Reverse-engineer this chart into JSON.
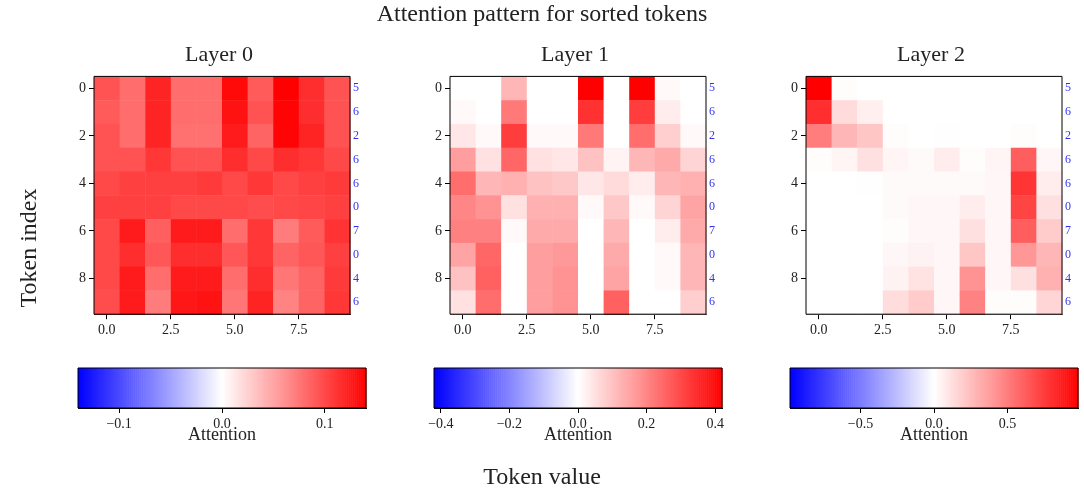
{
  "chart_data": [
    {
      "type": "heatmap",
      "title": "Layer 0",
      "annotations": [
        "Attention pattern for sorted tokens"
      ],
      "ylabel": "Token index",
      "clabel": "Attention",
      "x": [
        0,
        1,
        2,
        3,
        4,
        5,
        6,
        7,
        8,
        9
      ],
      "xlim": [
        -0.5,
        9.5
      ],
      "xticks": [
        {
          "value": 0,
          "label": "0.0"
        },
        {
          "value": 2.5,
          "label": "2.5"
        },
        {
          "value": 5,
          "label": "5.0"
        },
        {
          "value": 7.5,
          "label": "7.5"
        }
      ],
      "y_categories": [
        "0",
        null,
        "2",
        null,
        "4",
        null,
        "6",
        null,
        "8",
        null
      ],
      "y2_categories": [
        "5",
        "6",
        "2",
        "6",
        "6",
        "0",
        "7",
        "0",
        "4",
        "6"
      ],
      "cells": [
        [
          0.095,
          0.08,
          0.12,
          0.08,
          0.08,
          0.135,
          0.09,
          0.14,
          0.115,
          0.095
        ],
        [
          0.09,
          0.08,
          0.12,
          0.08,
          0.08,
          0.13,
          0.095,
          0.138,
          0.115,
          0.095
        ],
        [
          0.095,
          0.08,
          0.12,
          0.078,
          0.078,
          0.125,
          0.085,
          0.138,
          0.12,
          0.095
        ],
        [
          0.095,
          0.095,
          0.11,
          0.095,
          0.095,
          0.115,
          0.1,
          0.115,
          0.11,
          0.1
        ],
        [
          0.1,
          0.105,
          0.105,
          0.105,
          0.108,
          0.1,
          0.11,
          0.1,
          0.105,
          0.108
        ],
        [
          0.105,
          0.105,
          0.105,
          0.1,
          0.1,
          0.1,
          0.098,
          0.1,
          0.102,
          0.105
        ],
        [
          0.1,
          0.125,
          0.088,
          0.125,
          0.125,
          0.08,
          0.11,
          0.072,
          0.09,
          0.112
        ],
        [
          0.1,
          0.115,
          0.092,
          0.115,
          0.115,
          0.092,
          0.11,
          0.085,
          0.092,
          0.105
        ],
        [
          0.1,
          0.125,
          0.08,
          0.125,
          0.125,
          0.08,
          0.115,
          0.075,
          0.085,
          0.108
        ],
        [
          0.098,
          0.125,
          0.072,
          0.128,
          0.13,
          0.075,
          0.12,
          0.068,
          0.085,
          0.11
        ]
      ],
      "clim": [
        -0.14,
        0.14
      ],
      "cticks": [
        {
          "value": -0.1,
          "label": "−0.1"
        },
        {
          "value": 0,
          "label": "0.0"
        },
        {
          "value": 0.1,
          "label": "0.1"
        }
      ]
    },
    {
      "type": "heatmap",
      "title": "Layer 1",
      "xlabel": "Token value",
      "clabel": "Attention",
      "x": [
        0,
        1,
        2,
        3,
        4,
        5,
        6,
        7,
        8,
        9
      ],
      "xlim": [
        -0.5,
        9.5
      ],
      "xticks": [
        {
          "value": 0,
          "label": "0.0"
        },
        {
          "value": 2.5,
          "label": "2.5"
        },
        {
          "value": 5,
          "label": "5.0"
        },
        {
          "value": 7.5,
          "label": "7.5"
        }
      ],
      "y_categories": [
        "0",
        null,
        "2",
        null,
        "4",
        null,
        "6",
        null,
        "8",
        null
      ],
      "y2_categories": [
        "5",
        "6",
        "2",
        "6",
        "6",
        "0",
        "7",
        "0",
        "4",
        "6"
      ],
      "cells": [
        [
          0,
          0,
          0.12,
          0,
          0,
          0.42,
          0,
          0.42,
          0.01,
          0
        ],
        [
          0.01,
          0,
          0.22,
          0,
          0,
          0.34,
          0,
          0.32,
          0.03,
          0
        ],
        [
          0.04,
          0.01,
          0.32,
          0.01,
          0.01,
          0.22,
          0,
          0.24,
          0.08,
          0.01
        ],
        [
          0.16,
          0.05,
          0.25,
          0.05,
          0.04,
          0.1,
          0.02,
          0.12,
          0.14,
          0.07
        ],
        [
          0.24,
          0.12,
          0.13,
          0.1,
          0.09,
          0.04,
          0.06,
          0.03,
          0.12,
          0.13
        ],
        [
          0.2,
          0.18,
          0.05,
          0.13,
          0.13,
          0.01,
          0.09,
          0.01,
          0.07,
          0.15
        ],
        [
          0.21,
          0.21,
          0.01,
          0.14,
          0.14,
          0,
          0.12,
          0,
          0.03,
          0.14
        ],
        [
          0.15,
          0.25,
          0,
          0.16,
          0.17,
          0,
          0.14,
          0,
          0.01,
          0.12
        ],
        [
          0.1,
          0.26,
          0,
          0.16,
          0.18,
          0,
          0.15,
          0,
          0.01,
          0.12
        ],
        [
          0.05,
          0.24,
          0,
          0.16,
          0.18,
          0,
          0.26,
          0,
          0,
          0.08
        ]
      ],
      "clim": [
        -0.42,
        0.42
      ],
      "cticks": [
        {
          "value": -0.4,
          "label": "−0.4"
        },
        {
          "value": -0.2,
          "label": "−0.2"
        },
        {
          "value": 0,
          "label": "0.0"
        },
        {
          "value": 0.2,
          "label": "0.2"
        },
        {
          "value": 0.4,
          "label": "0.4"
        }
      ]
    },
    {
      "type": "heatmap",
      "title": "Layer 2",
      "clabel": "Attention",
      "x": [
        0,
        1,
        2,
        3,
        4,
        5,
        6,
        7,
        8,
        9
      ],
      "xlim": [
        -0.5,
        9.5
      ],
      "xticks": [
        {
          "value": 0,
          "label": "0.0"
        },
        {
          "value": 2.5,
          "label": "2.5"
        },
        {
          "value": 5,
          "label": "5.0"
        },
        {
          "value": 7.5,
          "label": "7.5"
        }
      ],
      "y_categories": [
        "0",
        null,
        "2",
        null,
        "4",
        null,
        "6",
        null,
        "8",
        null
      ],
      "y2_categories": [
        "5",
        "6",
        "2",
        "6",
        "6",
        "0",
        "7",
        "0",
        "4",
        "6"
      ],
      "cells": [
        [
          0.98,
          0.01,
          0,
          0,
          0,
          0,
          0,
          0,
          0,
          0
        ],
        [
          0.8,
          0.14,
          0.06,
          0,
          0,
          0,
          0,
          0,
          0,
          0
        ],
        [
          0.5,
          0.28,
          0.22,
          0.01,
          0,
          0.005,
          0,
          0,
          0.01,
          0
        ],
        [
          0.01,
          0.04,
          0.12,
          0.04,
          0.02,
          0.07,
          0.01,
          0.04,
          0.62,
          0.03
        ],
        [
          0,
          0,
          0.005,
          0.02,
          0.02,
          0.02,
          0.02,
          0.03,
          0.78,
          0.07
        ],
        [
          0,
          0,
          0,
          0.02,
          0.03,
          0.03,
          0.07,
          0.03,
          0.72,
          0.12
        ],
        [
          0,
          0,
          0,
          0.01,
          0.03,
          0.03,
          0.12,
          0.03,
          0.62,
          0.2
        ],
        [
          0,
          0,
          0,
          0.03,
          0.05,
          0.03,
          0.22,
          0.03,
          0.4,
          0.28
        ],
        [
          0,
          0,
          0,
          0.05,
          0.11,
          0.03,
          0.42,
          0.03,
          0.12,
          0.3
        ],
        [
          0,
          0,
          0,
          0.13,
          0.2,
          0.03,
          0.48,
          0.01,
          0.01,
          0.16
        ]
      ],
      "clim": [
        -0.98,
        0.98
      ],
      "cticks": [
        {
          "value": -0.5,
          "label": "−0.5"
        },
        {
          "value": 0,
          "label": "0.0"
        },
        {
          "value": 0.5,
          "label": "0.5"
        }
      ]
    }
  ]
}
